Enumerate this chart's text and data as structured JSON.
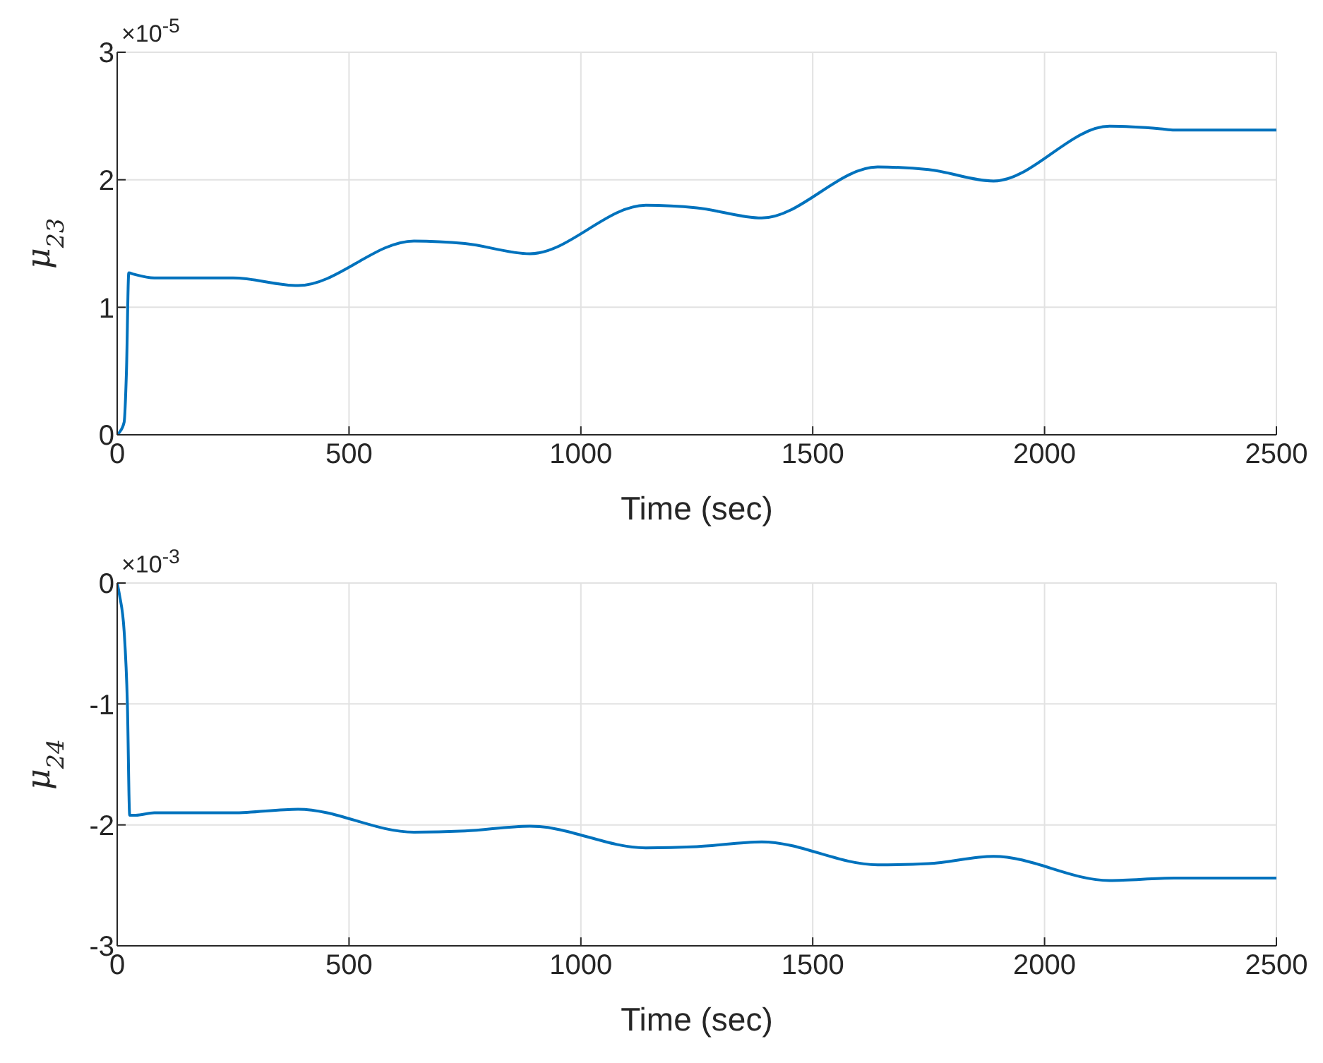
{
  "chart_data": [
    {
      "type": "line",
      "ylabel": "μ$_{23}$",
      "xlabel": "Time (sec)",
      "annotations": [
        "×10$^{-5}$"
      ],
      "xlim": [
        0,
        2500
      ],
      "xticks": [
        0,
        500,
        1000,
        1500,
        2000,
        2500
      ],
      "ylim": [
        0,
        3
      ],
      "yticks": [
        0,
        1,
        2,
        3
      ],
      "grid": true,
      "marker": "none",
      "line_style": "solid",
      "x": [
        0,
        5,
        15,
        20,
        25,
        35,
        80,
        250,
        390,
        640,
        750,
        890,
        1140,
        1250,
        1390,
        1640,
        1750,
        1890,
        2140,
        2250,
        2280,
        2500
      ],
      "series": [
        {
          "color": "#0072bd",
          "values": [
            0,
            0.02,
            0.1,
            0.5,
            1.27,
            1.26,
            1.23,
            1.23,
            1.17,
            1.52,
            1.5,
            1.42,
            1.8,
            1.78,
            1.7,
            2.1,
            2.08,
            1.99,
            2.42,
            2.4,
            2.39,
            2.39
          ]
        }
      ]
    },
    {
      "type": "line",
      "ylabel": "μ$_{24}$",
      "xlabel": "Time (sec)",
      "annotations": [
        "×10$^{-3}$"
      ],
      "xlim": [
        0,
        2500
      ],
      "xticks": [
        0,
        500,
        1000,
        1500,
        2000,
        2500
      ],
      "ylim": [
        -3,
        0
      ],
      "yticks": [
        -3,
        -2,
        -1,
        0
      ],
      "grid": true,
      "marker": "none",
      "line_style": "solid",
      "x": [
        0,
        5,
        15,
        22,
        27,
        40,
        80,
        250,
        390,
        640,
        750,
        890,
        1140,
        1250,
        1390,
        1640,
        1750,
        1890,
        2140,
        2280,
        2500
      ],
      "series": [
        {
          "color": "#0072bd",
          "values": [
            0,
            -0.1,
            -0.4,
            -1.0,
            -1.92,
            -1.92,
            -1.9,
            -1.9,
            -1.87,
            -2.06,
            -2.05,
            -2.01,
            -2.19,
            -2.18,
            -2.14,
            -2.33,
            -2.32,
            -2.26,
            -2.46,
            -2.44,
            -2.44
          ]
        }
      ]
    }
  ]
}
